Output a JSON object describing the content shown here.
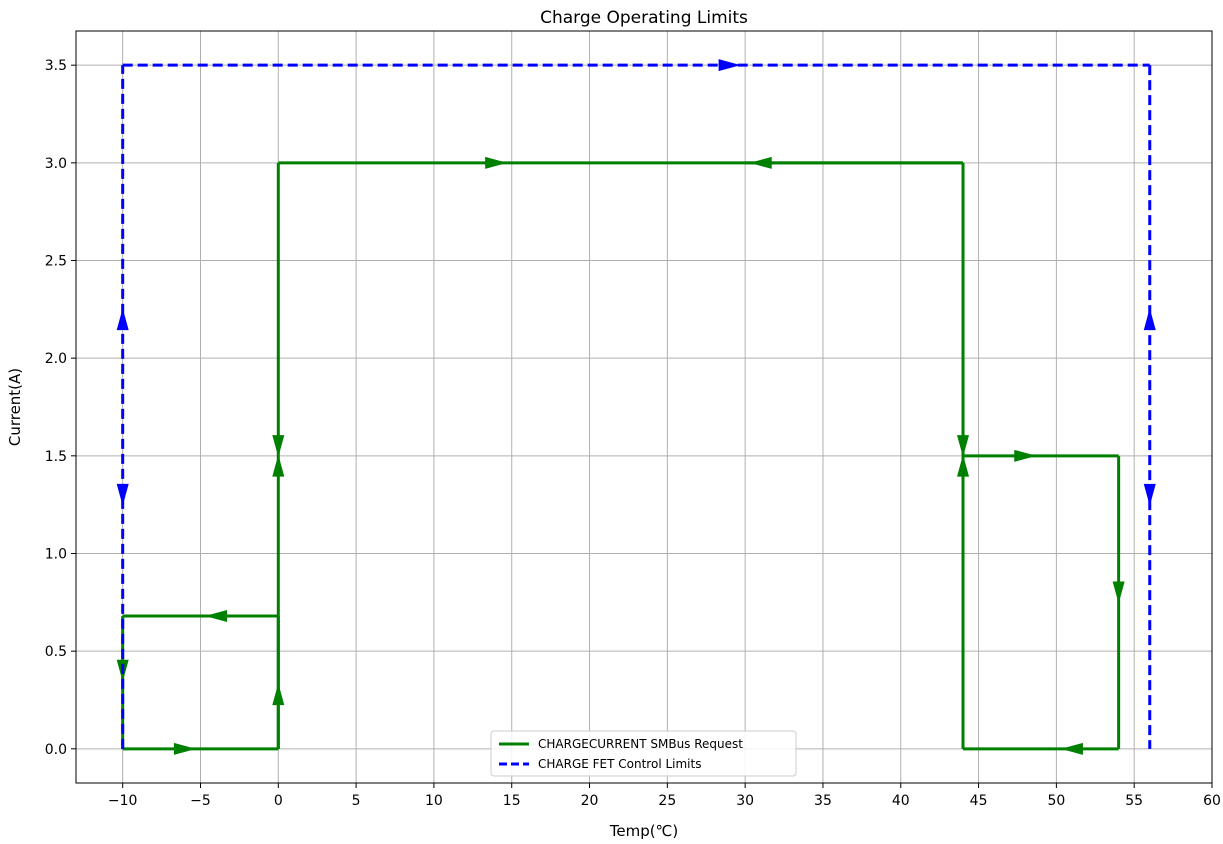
{
  "chart_data": {
    "type": "line",
    "title": "Charge Operating Limits",
    "xlabel": "Temp(℃)",
    "ylabel": "Current(A)",
    "xlim": [
      -13,
      60
    ],
    "ylim": [
      -0.175,
      3.675
    ],
    "xticks": [
      -10,
      -5,
      0,
      5,
      10,
      15,
      20,
      25,
      30,
      35,
      40,
      45,
      50,
      55,
      60
    ],
    "xtick_labels": [
      "−10",
      "−5",
      "0",
      "5",
      "10",
      "15",
      "20",
      "25",
      "30",
      "35",
      "40",
      "45",
      "50",
      "55",
      "60"
    ],
    "yticks": [
      0.0,
      0.5,
      1.0,
      1.5,
      2.0,
      2.5,
      3.0,
      3.5
    ],
    "ytick_labels": [
      "0.0",
      "0.5",
      "1.0",
      "1.5",
      "2.0",
      "2.5",
      "3.0",
      "3.5"
    ],
    "grid": true,
    "legend_position": "lower-center",
    "series": [
      {
        "name": "CHARGECURRENT SMBus Request",
        "color": "#008000",
        "style": "solid",
        "segments": [
          [
            [
              -10,
              0
            ],
            [
              0,
              0
            ]
          ],
          [
            [
              0,
              0
            ],
            [
              0,
              1.5
            ]
          ],
          [
            [
              0,
              1.5
            ],
            [
              0,
              3.0
            ]
          ],
          [
            [
              0,
              3.0
            ],
            [
              44,
              3.0
            ]
          ],
          [
            [
              44,
              3.0
            ],
            [
              44,
              1.5
            ]
          ],
          [
            [
              44,
              1.5
            ],
            [
              54,
              1.5
            ]
          ],
          [
            [
              54,
              1.5
            ],
            [
              54,
              0
            ]
          ],
          [
            [
              54,
              0
            ],
            [
              44,
              0
            ]
          ],
          [
            [
              44,
              0
            ],
            [
              44,
              1.5
            ]
          ],
          [
            [
              44,
              1.5
            ],
            [
              44,
              3.0
            ]
          ],
          [
            [
              44,
              3.0
            ],
            [
              30,
              3.0
            ]
          ],
          [
            [
              0,
              0
            ],
            [
              0,
              0.68
            ]
          ],
          [
            [
              0,
              0.68
            ],
            [
              -10,
              0.68
            ]
          ],
          [
            [
              -10,
              0.68
            ],
            [
              -10,
              0
            ]
          ]
        ],
        "arrows": [
          {
            "x": -6,
            "y": 0,
            "dir": "right"
          },
          {
            "x": 0,
            "y": 0.28,
            "dir": "up"
          },
          {
            "x": 0,
            "y": 1.45,
            "dir": "up"
          },
          {
            "x": 0,
            "y": 1.55,
            "dir": "down"
          },
          {
            "x": -4,
            "y": 0.68,
            "dir": "left"
          },
          {
            "x": -10,
            "y": 0.4,
            "dir": "down"
          },
          {
            "x": 14,
            "y": 3.0,
            "dir": "right"
          },
          {
            "x": 31,
            "y": 3.0,
            "dir": "left"
          },
          {
            "x": 44,
            "y": 1.55,
            "dir": "down"
          },
          {
            "x": 44,
            "y": 1.45,
            "dir": "up"
          },
          {
            "x": 48,
            "y": 1.5,
            "dir": "right"
          },
          {
            "x": 54,
            "y": 0.8,
            "dir": "down"
          },
          {
            "x": 51,
            "y": 0,
            "dir": "left"
          }
        ]
      },
      {
        "name": "CHARGE FET Control Limits",
        "color": "#0000ff",
        "style": "dashed",
        "segments": [
          [
            [
              -10,
              0
            ],
            [
              -10,
              3.5
            ]
          ],
          [
            [
              -10,
              3.5
            ],
            [
              56,
              3.5
            ]
          ],
          [
            [
              56,
              3.5
            ],
            [
              56,
              0
            ]
          ]
        ],
        "arrows": [
          {
            "x": -10,
            "y": 2.2,
            "dir": "up"
          },
          {
            "x": -10,
            "y": 1.3,
            "dir": "down"
          },
          {
            "x": 29,
            "y": 3.5,
            "dir": "right"
          },
          {
            "x": 56,
            "y": 2.2,
            "dir": "up"
          },
          {
            "x": 56,
            "y": 1.3,
            "dir": "down"
          }
        ]
      }
    ]
  }
}
